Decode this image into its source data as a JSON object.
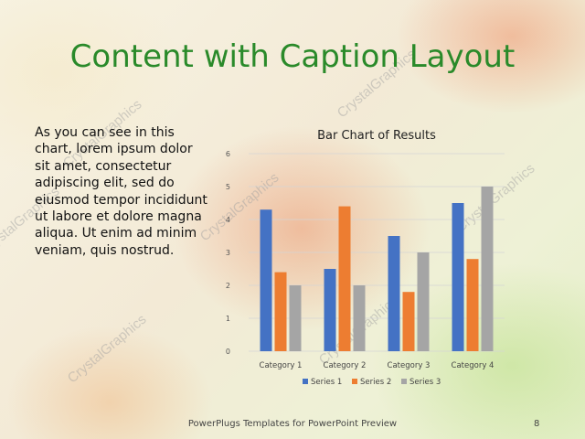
{
  "slide": {
    "title": "Content with Caption Layout",
    "body_text": "As you can see in this chart, lorem ipsum dolor sit amet, consectetur adipiscing elit, sed do eiusmod tempor incididunt ut labore et dolore magna aliqua. Ut enim ad minim veniam, quis nostrud.",
    "footer": "PowerPlugs Templates for PowerPoint Preview",
    "page_number": "8",
    "watermark_text": "CrystalGraphics"
  },
  "colors": {
    "title": "#2a8a2a",
    "series1": "#4472c4",
    "series2": "#ed7d31",
    "series3": "#a5a5a5"
  },
  "chart_data": {
    "type": "bar",
    "title": "Bar Chart of Results",
    "categories": [
      "Category 1",
      "Category 2",
      "Category 3",
      "Category 4"
    ],
    "series": [
      {
        "name": "Series 1",
        "values": [
          4.3,
          2.5,
          3.5,
          4.5
        ]
      },
      {
        "name": "Series 2",
        "values": [
          2.4,
          4.4,
          1.8,
          2.8
        ]
      },
      {
        "name": "Series 3",
        "values": [
          2,
          2,
          3,
          5
        ]
      }
    ],
    "ylim": [
      0,
      6
    ],
    "yticks": [
      0,
      1,
      2,
      3,
      4,
      5,
      6
    ],
    "grid": true,
    "legend": "bottom",
    "xlabel": "",
    "ylabel": ""
  }
}
